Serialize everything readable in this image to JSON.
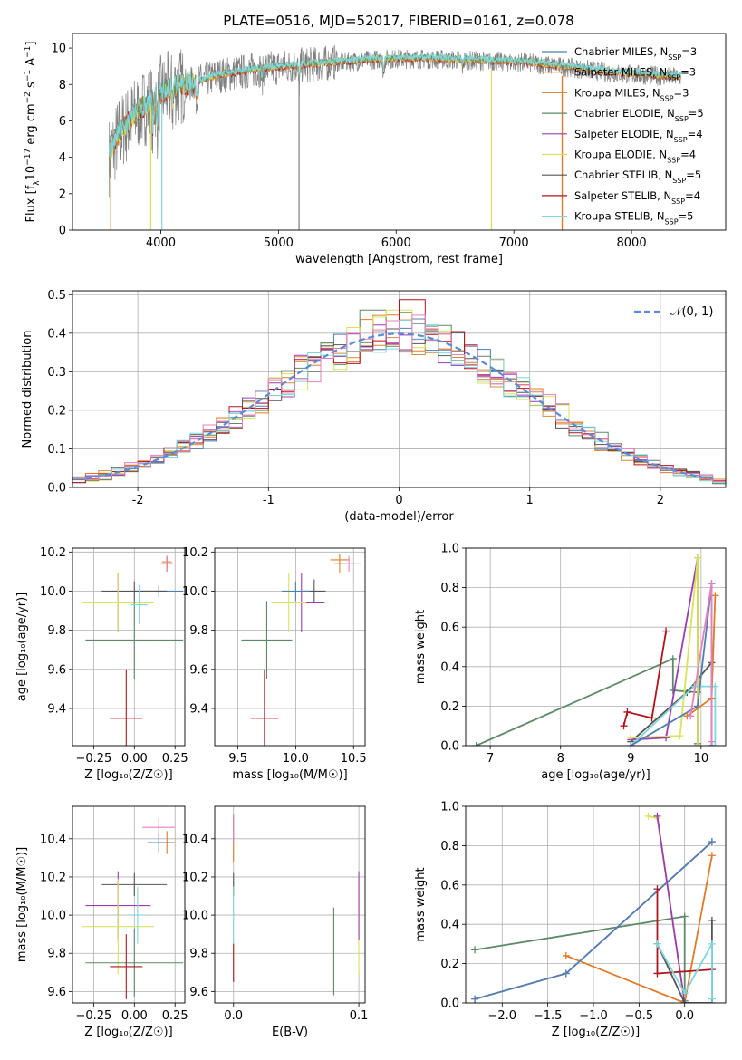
{
  "figure_title": "PLATE=0516, MJD=52017, FIBERID=0161, z=0.078",
  "colors": {
    "chabrier_miles": "#4f7fb0",
    "salpeter_miles": "#e07b29",
    "kroupa_miles": "#d68a3a",
    "chabrier_elodie": "#5c8a66",
    "salpeter_elodie": "#9b3db0",
    "kroupa_elodie": "#d8e35a",
    "chabrier_stelib": "#555555",
    "salpeter_stelib": "#b0141c",
    "kroupa_stelib": "#7fd6dc",
    "pink": "#e87fbf",
    "gaussian": "#5b8bd6",
    "grey_data": "#808080"
  },
  "chart_data": [
    {
      "id": "spectrum",
      "type": "line",
      "title": "PLATE=0516, MJD=52017, FIBERID=0161, z=0.078",
      "xlabel": "wavelength [Angstrom, rest frame]",
      "ylabel": "Flux [f",
      "ylabel_parts": [
        "Flux [f",
        "λ",
        "10",
        "−17",
        " erg cm",
        "−2",
        " s",
        "−1",
        " A",
        "−1",
        "]"
      ],
      "xlim": [
        3250,
        8800
      ],
      "ylim": [
        0,
        10.8
      ],
      "xticks": [
        4000,
        5000,
        6000,
        7000,
        8000
      ],
      "yticks": [
        0,
        2,
        4,
        6,
        8,
        10
      ],
      "legend_position": "top-right",
      "legend": [
        {
          "label": "Chabrier MILES, N",
          "sub": "SSP",
          "tail": "=3",
          "color_key": "chabrier_miles"
        },
        {
          "label": "Salpeter MILES, N",
          "sub": "SSP",
          "tail": "=3",
          "color_key": "salpeter_miles"
        },
        {
          "label": "Kroupa MILES, N",
          "sub": "SSP",
          "tail": "=3",
          "color_key": "kroupa_miles"
        },
        {
          "label": "Chabrier ELODIE, N",
          "sub": "SSP",
          "tail": "=5",
          "color_key": "chabrier_elodie"
        },
        {
          "label": "Salpeter ELODIE, N",
          "sub": "SSP",
          "tail": "=4",
          "color_key": "salpeter_elodie"
        },
        {
          "label": "Kroupa ELODIE, N",
          "sub": "SSP",
          "tail": "=4",
          "color_key": "kroupa_elodie"
        },
        {
          "label": "Chabrier STELIB, N",
          "sub": "SSP",
          "tail": "=5",
          "color_key": "chabrier_stelib"
        },
        {
          "label": "Salpeter STELIB, N",
          "sub": "SSP",
          "tail": "=4",
          "color_key": "salpeter_stelib"
        },
        {
          "label": "Kroupa STELIB, N",
          "sub": "SSP",
          "tail": "=5",
          "color_key": "kroupa_stelib"
        }
      ],
      "continuum": {
        "x": [
          3560,
          3650,
          3800,
          3950,
          4100,
          4300,
          4500,
          4800,
          5100,
          5500,
          5900,
          6300,
          6700,
          7100,
          7500,
          7900,
          8400
        ],
        "y": [
          5.2,
          6.2,
          7.0,
          7.3,
          7.8,
          8.1,
          8.5,
          8.8,
          9.0,
          9.2,
          9.4,
          9.4,
          9.3,
          9.2,
          8.9,
          8.6,
          8.4
        ]
      },
      "absorption_lines": [
        {
          "x": 3934,
          "depth": 1.6
        },
        {
          "x": 3969,
          "depth": 1.4
        },
        {
          "x": 4102,
          "depth": 0.8
        },
        {
          "x": 4304,
          "depth": 1.0
        },
        {
          "x": 4861,
          "depth": 0.6
        },
        {
          "x": 5175,
          "depth": 1.0
        },
        {
          "x": 5893,
          "depth": 0.8
        },
        {
          "x": 6563,
          "depth": 0.4
        }
      ],
      "dropouts": [
        {
          "x": 3575,
          "color_key": "salpeter_miles",
          "y": 0
        },
        {
          "x": 3915,
          "color_key": "kroupa_elodie",
          "y": 0
        },
        {
          "x": 4010,
          "color_key": "kroupa_stelib",
          "y": 0
        },
        {
          "x": 5175,
          "color_key": "grey_data",
          "y": 0
        },
        {
          "x": 6810,
          "color_key": "kroupa_elodie",
          "y": 0
        },
        {
          "x": 7410,
          "color_key": "salpeter_miles",
          "y": 0
        },
        {
          "x": 7425,
          "color_key": "kroupa_miles",
          "y": 0
        }
      ]
    },
    {
      "id": "residuals",
      "type": "line",
      "xlabel": "(data-model)/error",
      "ylabel": "Normed distribution",
      "xlim": [
        -2.5,
        2.5
      ],
      "ylim": [
        0,
        0.51
      ],
      "xticks": [
        -2,
        -1,
        0,
        1,
        2
      ],
      "yticks": [
        0.0,
        0.1,
        0.2,
        0.3,
        0.4,
        0.5
      ],
      "grid": true,
      "legend_position": "top-right",
      "legend_label": "𝒩(0, 1)",
      "bin_width": 0.1,
      "histogram_colors": [
        "chabrier_miles",
        "salpeter_miles",
        "kroupa_miles",
        "chabrier_elodie",
        "salpeter_elodie",
        "kroupa_elodie",
        "chabrier_stelib",
        "salpeter_stelib",
        "kroupa_stelib",
        "pink"
      ],
      "histogram_peaks": [
        {
          "x": 0.1,
          "y": 0.487,
          "color_key": "salpeter_stelib"
        },
        {
          "x": -0.2,
          "y": 0.46,
          "color_key": "chabrier_elodie"
        },
        {
          "x": 0.0,
          "y": 0.46,
          "color_key": "kroupa_elodie"
        },
        {
          "x": 0.35,
          "y": 0.42,
          "color_key": "chabrier_elodie"
        }
      ]
    },
    {
      "id": "age_vs_z",
      "type": "scatter",
      "xlabel": "Z [log₁₀(Z/Z☉)]",
      "ylabel": "age  [log₁₀(age/yr)]",
      "xlim": [
        -0.38,
        0.31
      ],
      "ylim": [
        9.21,
        10.22
      ],
      "xticks": [
        -0.25,
        0.0,
        0.25
      ],
      "xtick_labels": [
        "−0.25",
        "0.00",
        "0.25"
      ],
      "yticks": [
        9.4,
        9.6,
        9.8,
        10.0,
        10.2
      ],
      "grid": true,
      "points": [
        {
          "x": 0.2,
          "y": 10.15,
          "xerr": 0.03,
          "yerr": 0.03,
          "color_key": "kroupa_miles"
        },
        {
          "x": 0.2,
          "y": 10.14,
          "xerr": 0.03,
          "yerr": 0.04,
          "color_key": "salpeter_miles"
        },
        {
          "x": 0.2,
          "y": 10.14,
          "xerr": 0.04,
          "yerr": 0.04,
          "color_key": "pink"
        },
        {
          "x": 0.15,
          "y": 10.0,
          "xerr": 0.15,
          "yerr": 0.03,
          "color_key": "chabrier_miles"
        },
        {
          "x": 0.0,
          "y": 10.0,
          "xerr": 0.2,
          "yerr": 0.05,
          "color_key": "chabrier_stelib"
        },
        {
          "x": -0.1,
          "y": 9.94,
          "xerr": 0.2,
          "yerr": 0.15,
          "color_key": "salpeter_elodie"
        },
        {
          "x": -0.1,
          "y": 9.94,
          "xerr": 0.22,
          "yerr": 0.15,
          "color_key": "kroupa_elodie"
        },
        {
          "x": 0.0,
          "y": 9.75,
          "xerr": 0.3,
          "yerr": 0.2,
          "color_key": "chabrier_elodie"
        },
        {
          "x": -0.05,
          "y": 9.35,
          "xerr": 0.1,
          "yerr": 0.25,
          "color_key": "salpeter_stelib"
        },
        {
          "x": 0.03,
          "y": 9.93,
          "xerr": 0.05,
          "yerr": 0.1,
          "color_key": "kroupa_stelib"
        }
      ]
    },
    {
      "id": "age_vs_mass",
      "type": "scatter",
      "xlabel": "mass [log₁₀(M/M☉)]",
      "ylabel": "",
      "xlim": [
        9.3,
        10.6
      ],
      "ylim": [
        9.21,
        10.22
      ],
      "xticks": [
        9.5,
        10.0,
        10.5
      ],
      "xtick_labels": [
        "9.5",
        "10.0",
        "10.5"
      ],
      "yticks": [
        9.4,
        9.6,
        9.8,
        10.0,
        10.2
      ],
      "grid": true,
      "points": [
        {
          "x": 10.38,
          "y": 10.16,
          "xerr": 0.08,
          "yerr": 0.03,
          "color_key": "salpeter_miles"
        },
        {
          "x": 10.46,
          "y": 10.14,
          "xerr": 0.1,
          "yerr": 0.04,
          "color_key": "pink"
        },
        {
          "x": 10.38,
          "y": 10.14,
          "xerr": 0.05,
          "yerr": 0.05,
          "color_key": "kroupa_miles"
        },
        {
          "x": 10.16,
          "y": 10.0,
          "xerr": 0.1,
          "yerr": 0.06,
          "color_key": "chabrier_stelib"
        },
        {
          "x": 10.05,
          "y": 9.94,
          "xerr": 0.2,
          "yerr": 0.15,
          "color_key": "salpeter_elodie"
        },
        {
          "x": 9.94,
          "y": 9.94,
          "xerr": 0.15,
          "yerr": 0.15,
          "color_key": "kroupa_elodie"
        },
        {
          "x": 9.75,
          "y": 9.75,
          "xerr": 0.22,
          "yerr": 0.2,
          "color_key": "chabrier_elodie"
        },
        {
          "x": 9.73,
          "y": 9.35,
          "xerr": 0.12,
          "yerr": 0.25,
          "color_key": "salpeter_stelib"
        },
        {
          "x": 10.0,
          "y": 10.0,
          "xerr": 0.12,
          "yerr": 0.05,
          "color_key": "chabrier_miles"
        }
      ]
    },
    {
      "id": "weight_vs_age",
      "type": "line",
      "xlabel": "age  [log₁₀(age/yr)]",
      "ylabel": "mass weight",
      "xlim": [
        6.65,
        10.35
      ],
      "ylim": [
        0,
        1.0
      ],
      "xticks": [
        7,
        8,
        9,
        10
      ],
      "yticks": [
        0.0,
        0.2,
        0.4,
        0.6,
        0.8,
        1.0
      ],
      "grid": true,
      "series": [
        {
          "color_key": "chabrier_elodie",
          "x": [
            6.8,
            9.6,
            9.6,
            9.95,
            9.95
          ],
          "y": [
            0.0,
            0.44,
            0.28,
            0.27,
            0.01
          ]
        },
        {
          "color_key": "salpeter_stelib",
          "x": [
            8.9,
            8.95,
            9.3,
            9.5
          ],
          "y": [
            0.1,
            0.17,
            0.14,
            0.58
          ]
        },
        {
          "color_key": "chabrier_stelib",
          "x": [
            9.0,
            9.8,
            10.15,
            10.15
          ],
          "y": [
            0.02,
            0.27,
            0.42,
            0.0
          ]
        },
        {
          "color_key": "salpeter_elodie",
          "x": [
            9.0,
            9.5,
            9.95,
            9.95
          ],
          "y": [
            0.03,
            0.04,
            0.95,
            0.0
          ]
        },
        {
          "color_key": "kroupa_elodie",
          "x": [
            9.0,
            9.7,
            9.95,
            9.95
          ],
          "y": [
            0.04,
            0.05,
            0.95,
            0.0
          ]
        },
        {
          "color_key": "kroupa_stelib",
          "x": [
            9.0,
            9.9,
            10.2,
            10.2
          ],
          "y": [
            0.0,
            0.3,
            0.3,
            0.0
          ]
        },
        {
          "color_key": "chabrier_miles",
          "x": [
            9.0,
            9.95,
            10.15,
            10.15
          ],
          "y": [
            0.0,
            0.2,
            0.82,
            0.0
          ]
        },
        {
          "color_key": "salpeter_miles",
          "x": [
            9.8,
            10.15,
            10.2
          ],
          "y": [
            0.15,
            0.24,
            0.76
          ]
        },
        {
          "color_key": "pink",
          "x": [
            9.85,
            10.15,
            10.15
          ],
          "y": [
            0.15,
            0.82,
            0.02
          ]
        }
      ]
    },
    {
      "id": "mass_vs_z",
      "type": "scatter",
      "xlabel": "Z [log₁₀(Z/Z☉)]",
      "ylabel": "mass [log₁₀(M/M☉)]",
      "xlim": [
        -0.38,
        0.31
      ],
      "ylim": [
        9.54,
        10.57
      ],
      "xticks": [
        -0.25,
        0.0,
        0.25
      ],
      "xtick_labels": [
        "−0.25",
        "0.00",
        "0.25"
      ],
      "yticks": [
        9.6,
        9.8,
        10.0,
        10.2,
        10.4
      ],
      "grid": true,
      "points": [
        {
          "x": 0.15,
          "y": 10.46,
          "xerr": 0.1,
          "yerr": 0.05,
          "color_key": "pink"
        },
        {
          "x": 0.2,
          "y": 10.38,
          "xerr": 0.05,
          "yerr": 0.06,
          "color_key": "salpeter_miles"
        },
        {
          "x": 0.15,
          "y": 10.38,
          "xerr": 0.07,
          "yerr": 0.05,
          "color_key": "chabrier_miles"
        },
        {
          "x": 0.0,
          "y": 10.16,
          "xerr": 0.2,
          "yerr": 0.06,
          "color_key": "chabrier_stelib"
        },
        {
          "x": -0.1,
          "y": 10.05,
          "xerr": 0.2,
          "yerr": 0.18,
          "color_key": "salpeter_elodie"
        },
        {
          "x": -0.1,
          "y": 9.94,
          "xerr": 0.22,
          "yerr": 0.25,
          "color_key": "kroupa_elodie"
        },
        {
          "x": 0.0,
          "y": 9.75,
          "xerr": 0.3,
          "yerr": 0.18,
          "color_key": "chabrier_elodie"
        },
        {
          "x": -0.05,
          "y": 9.73,
          "xerr": 0.1,
          "yerr": 0.17,
          "color_key": "salpeter_stelib"
        },
        {
          "x": 0.02,
          "y": 10.0,
          "xerr": 0.05,
          "yerr": 0.15,
          "color_key": "kroupa_stelib"
        }
      ]
    },
    {
      "id": "mass_vs_ebv",
      "type": "scatter",
      "xlabel": "E(B-V)",
      "ylabel": "",
      "xlim": [
        -0.015,
        0.105
      ],
      "ylim": [
        9.54,
        10.57
      ],
      "xticks": [
        0.0,
        0.1
      ],
      "xtick_labels": [
        "0.0",
        "0.1"
      ],
      "yticks": [
        9.6,
        9.8,
        10.0,
        10.2,
        10.4
      ],
      "grid": true,
      "points": [
        {
          "x": 0.0,
          "y": 10.4,
          "xerr": 0.0,
          "yerr": 0.12,
          "color_key": "salpeter_miles"
        },
        {
          "x": 0.0,
          "y": 10.45,
          "xerr": 0.0,
          "yerr": 0.08,
          "color_key": "pink"
        },
        {
          "x": 0.0,
          "y": 10.16,
          "xerr": 0.0,
          "yerr": 0.06,
          "color_key": "chabrier_stelib"
        },
        {
          "x": 0.0,
          "y": 10.0,
          "xerr": 0.0,
          "yerr": 0.15,
          "color_key": "kroupa_stelib"
        },
        {
          "x": 0.0,
          "y": 9.75,
          "xerr": 0.0,
          "yerr": 0.1,
          "color_key": "salpeter_stelib"
        },
        {
          "x": 0.08,
          "y": 9.81,
          "xerr": 0.0,
          "yerr": 0.23,
          "color_key": "chabrier_elodie"
        },
        {
          "x": 0.1,
          "y": 9.94,
          "xerr": 0.0,
          "yerr": 0.25,
          "color_key": "kroupa_elodie"
        },
        {
          "x": 0.1,
          "y": 10.05,
          "xerr": 0.0,
          "yerr": 0.18,
          "color_key": "salpeter_elodie"
        }
      ]
    },
    {
      "id": "weight_vs_z",
      "type": "line",
      "xlabel": "Z [log₁₀(Z/Z☉)]",
      "ylabel": "mass weight",
      "xlim": [
        -2.4,
        0.45
      ],
      "ylim": [
        0,
        1.0
      ],
      "xticks": [
        -2.0,
        -1.5,
        -1.0,
        -0.5,
        0.0
      ],
      "xtick_labels": [
        "−2.0",
        "−1.5",
        "−1.0",
        "−0.5",
        "0.0"
      ],
      "yticks": [
        0.0,
        0.2,
        0.4,
        0.6,
        0.8,
        1.0
      ],
      "grid": true,
      "series": [
        {
          "color_key": "chabrier_elodie",
          "x": [
            -2.3,
            0.0,
            0.0
          ],
          "y": [
            0.27,
            0.44,
            0.01
          ]
        },
        {
          "color_key": "salpeter_miles",
          "x": [
            -1.3,
            0.0,
            0.3
          ],
          "y": [
            0.24,
            0.0,
            0.75
          ]
        },
        {
          "color_key": "pink",
          "x": [
            -2.3,
            -1.3,
            0.3
          ],
          "y": [
            0.02,
            0.15,
            0.82
          ]
        },
        {
          "color_key": "chabrier_miles",
          "x": [
            -2.3,
            -1.3,
            0.3
          ],
          "y": [
            0.02,
            0.15,
            0.82
          ]
        },
        {
          "color_key": "kroupa_elodie",
          "x": [
            -0.4,
            -0.3,
            0.0
          ],
          "y": [
            0.95,
            0.94,
            0.0
          ]
        },
        {
          "color_key": "salpeter_elodie",
          "x": [
            -0.3,
            0.0
          ],
          "y": [
            0.95,
            0.0
          ]
        },
        {
          "color_key": "salpeter_stelib",
          "x": [
            -0.3,
            -0.3,
            0.3
          ],
          "y": [
            0.58,
            0.15,
            0.17
          ]
        },
        {
          "color_key": "chabrier_stelib",
          "x": [
            0.3,
            0.3,
            0.0,
            -0.3,
            -0.3
          ],
          "y": [
            0.42,
            0.0,
            0.0,
            0.3,
            0.3
          ]
        },
        {
          "color_key": "kroupa_stelib",
          "x": [
            -0.3,
            0.0,
            0.3,
            0.3
          ],
          "y": [
            0.3,
            0.05,
            0.3,
            0.02
          ]
        }
      ]
    }
  ]
}
